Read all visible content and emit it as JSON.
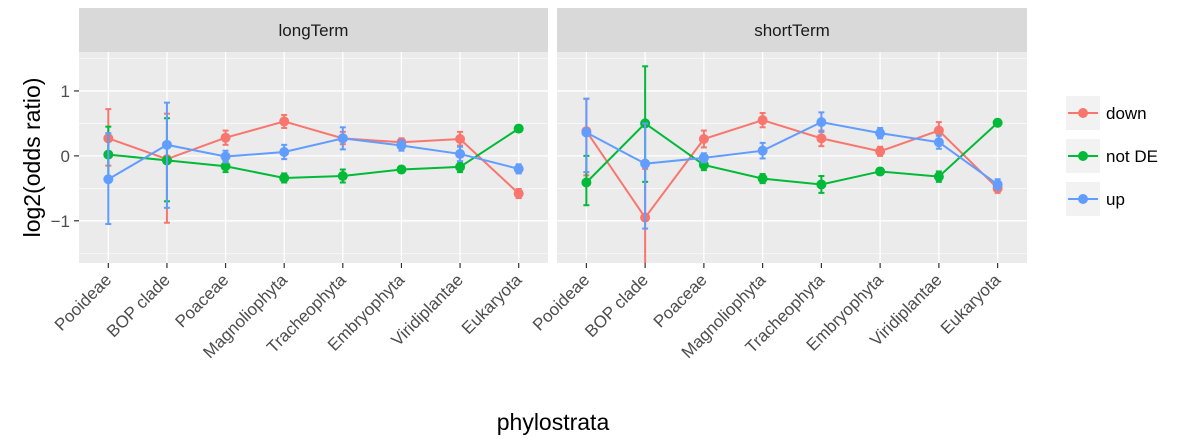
{
  "chart_data": {
    "type": "line",
    "xlabel": "phylostrata",
    "ylabel": "log2(odds ratio)",
    "yticks": [
      -1,
      0,
      1
    ],
    "ylim": [
      -1.65,
      1.6
    ],
    "categories": [
      "Pooideae",
      "BOP clade",
      "Poaceae",
      "Magnoliophyta",
      "Tracheophyta",
      "Embryophyta",
      "Viridiplantae",
      "Eukaryota"
    ],
    "legend": {
      "position": "right",
      "entries": [
        "down",
        "not DE",
        "up"
      ]
    },
    "colors": {
      "down": "#f8766d",
      "not DE": "#00ba38",
      "up": "#619cff"
    },
    "panels": [
      {
        "title": "longTerm",
        "series": [
          {
            "name": "down",
            "values": [
              0.27,
              -0.05,
              0.28,
              0.53,
              0.27,
              0.21,
              0.26,
              -0.58
            ],
            "lower": [
              -0.15,
              -1.03,
              0.17,
              0.43,
              0.18,
              0.15,
              0.16,
              -0.65
            ],
            "upper": [
              0.72,
              0.65,
              0.39,
              0.63,
              0.37,
              0.27,
              0.37,
              -0.51
            ]
          },
          {
            "name": "not DE",
            "values": [
              0.02,
              -0.07,
              -0.16,
              -0.34,
              -0.31,
              -0.21,
              -0.17,
              0.42
            ],
            "lower": [
              -0.4,
              -0.7,
              -0.25,
              -0.41,
              -0.41,
              -0.26,
              -0.25,
              0.37
            ],
            "upper": [
              0.45,
              0.58,
              -0.07,
              -0.27,
              -0.21,
              -0.16,
              -0.09,
              0.47
            ]
          },
          {
            "name": "up",
            "values": [
              -0.36,
              0.17,
              -0.01,
              0.06,
              0.27,
              0.16,
              0.03,
              -0.2
            ],
            "lower": [
              -1.05,
              -0.8,
              -0.1,
              -0.05,
              0.1,
              0.08,
              -0.08,
              -0.27
            ],
            "upper": [
              0.35,
              0.82,
              0.08,
              0.17,
              0.44,
              0.24,
              0.14,
              -0.13
            ]
          }
        ]
      },
      {
        "title": "shortTerm",
        "series": [
          {
            "name": "down",
            "values": [
              0.38,
              -0.95,
              0.26,
              0.55,
              0.27,
              0.07,
              0.39,
              -0.5
            ],
            "lower": [
              -0.3,
              -1.7,
              0.13,
              0.44,
              0.15,
              0.0,
              0.26,
              -0.57
            ],
            "upper": [
              0.88,
              -0.2,
              0.39,
              0.66,
              0.39,
              0.14,
              0.52,
              -0.43
            ]
          },
          {
            "name": "not DE",
            "values": [
              -0.41,
              0.5,
              -0.14,
              -0.35,
              -0.44,
              -0.24,
              -0.32,
              0.51
            ],
            "lower": [
              -0.76,
              -0.4,
              -0.22,
              -0.42,
              -0.57,
              -0.29,
              -0.4,
              0.46
            ],
            "upper": [
              0.0,
              1.38,
              -0.06,
              -0.28,
              -0.31,
              -0.19,
              -0.24,
              0.56
            ]
          },
          {
            "name": "up",
            "values": [
              0.36,
              -0.12,
              -0.03,
              0.08,
              0.52,
              0.35,
              0.21,
              -0.44
            ],
            "lower": [
              -0.25,
              -1.12,
              -0.1,
              -0.04,
              0.37,
              0.27,
              0.11,
              -0.52
            ],
            "upper": [
              0.88,
              0.5,
              0.04,
              0.2,
              0.67,
              0.43,
              0.31,
              -0.36
            ]
          }
        ]
      }
    ]
  }
}
